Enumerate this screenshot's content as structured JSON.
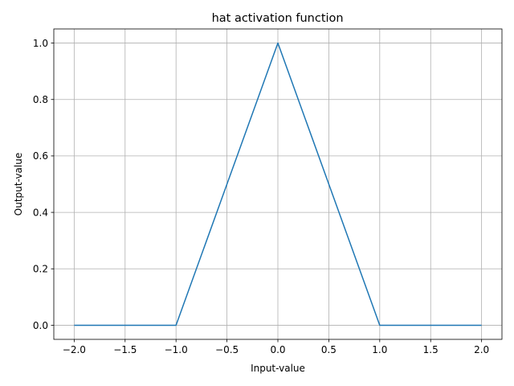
{
  "chart_data": {
    "type": "line",
    "title": "hat activation function",
    "xlabel": "Input-value",
    "ylabel": "Output-value",
    "xlim": [
      -2.2,
      2.2
    ],
    "ylim": [
      -0.05,
      1.05
    ],
    "xticks": [
      -2.0,
      -1.5,
      -1.0,
      -0.5,
      0.0,
      0.5,
      1.0,
      1.5,
      2.0
    ],
    "xtick_labels": [
      "−2.0",
      "−1.5",
      "−1.0",
      "−0.5",
      "0.0",
      "0.5",
      "1.0",
      "1.5",
      "2.0"
    ],
    "yticks": [
      0.0,
      0.2,
      0.4,
      0.6,
      0.8,
      1.0
    ],
    "ytick_labels": [
      "0.0",
      "0.2",
      "0.4",
      "0.6",
      "0.8",
      "1.0"
    ],
    "grid": true,
    "series": [
      {
        "color": "#1f77b4",
        "x": [
          -2.0,
          -1.0,
          0.0,
          1.0,
          2.0
        ],
        "y": [
          0.0,
          0.0,
          1.0,
          0.0,
          0.0
        ]
      }
    ]
  }
}
